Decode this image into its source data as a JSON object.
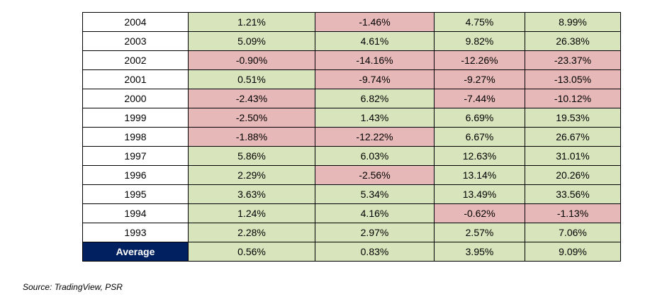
{
  "table": {
    "rows": [
      {
        "year": "2004",
        "values": [
          "1.21%",
          "-1.46%",
          "4.75%",
          "8.99%"
        ],
        "signs": [
          "pos",
          "neg",
          "pos",
          "pos"
        ]
      },
      {
        "year": "2003",
        "values": [
          "5.09%",
          "4.61%",
          "9.82%",
          "26.38%"
        ],
        "signs": [
          "pos",
          "pos",
          "pos",
          "pos"
        ]
      },
      {
        "year": "2002",
        "values": [
          "-0.90%",
          "-14.16%",
          "-12.26%",
          "-23.37%"
        ],
        "signs": [
          "neg",
          "neg",
          "neg",
          "neg"
        ]
      },
      {
        "year": "2001",
        "values": [
          "0.51%",
          "-9.74%",
          "-9.27%",
          "-13.05%"
        ],
        "signs": [
          "pos",
          "neg",
          "neg",
          "neg"
        ]
      },
      {
        "year": "2000",
        "values": [
          "-2.43%",
          "6.82%",
          "-7.44%",
          "-10.12%"
        ],
        "signs": [
          "neg",
          "pos",
          "neg",
          "neg"
        ]
      },
      {
        "year": "1999",
        "values": [
          "-2.50%",
          "1.43%",
          "6.69%",
          "19.53%"
        ],
        "signs": [
          "neg",
          "pos",
          "pos",
          "pos"
        ]
      },
      {
        "year": "1998",
        "values": [
          "-1.88%",
          "-12.22%",
          "6.67%",
          "26.67%"
        ],
        "signs": [
          "neg",
          "neg",
          "pos",
          "pos"
        ]
      },
      {
        "year": "1997",
        "values": [
          "5.86%",
          "6.03%",
          "12.63%",
          "31.01%"
        ],
        "signs": [
          "pos",
          "pos",
          "pos",
          "pos"
        ]
      },
      {
        "year": "1996",
        "values": [
          "2.29%",
          "-2.56%",
          "13.14%",
          "20.26%"
        ],
        "signs": [
          "pos",
          "neg",
          "pos",
          "pos"
        ]
      },
      {
        "year": "1995",
        "values": [
          "3.63%",
          "5.34%",
          "13.49%",
          "33.56%"
        ],
        "signs": [
          "pos",
          "pos",
          "pos",
          "pos"
        ]
      },
      {
        "year": "1994",
        "values": [
          "1.24%",
          "4.16%",
          "-0.62%",
          "-1.13%"
        ],
        "signs": [
          "pos",
          "pos",
          "neg",
          "neg"
        ]
      },
      {
        "year": "1993",
        "values": [
          "2.28%",
          "2.97%",
          "2.57%",
          "7.06%"
        ],
        "signs": [
          "pos",
          "pos",
          "pos",
          "pos"
        ]
      }
    ],
    "average": {
      "label": "Average",
      "values": [
        "0.56%",
        "0.83%",
        "3.95%",
        "9.09%"
      ]
    }
  },
  "colors": {
    "positive_fill": "#d8e4bc",
    "negative_fill": "#e6b8b7",
    "average_label_fill": "#002060"
  },
  "source": "Source: TradingView, PSR"
}
